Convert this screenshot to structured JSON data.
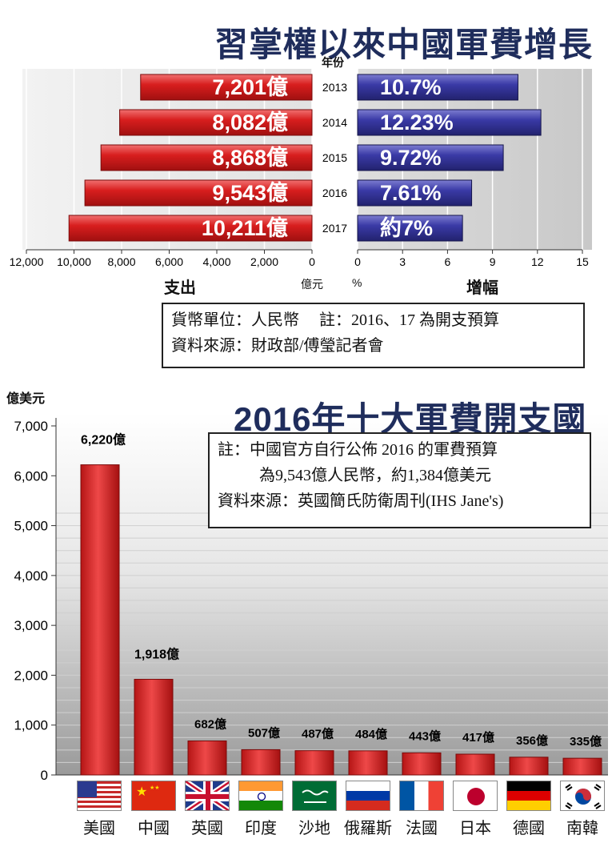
{
  "chart_data": [
    {
      "type": "bar",
      "orientation": "horizontal-butterfly",
      "title": "習掌權以來中國軍費增長",
      "year_header": "年份",
      "categories": [
        "2013",
        "2014",
        "2015",
        "2016",
        "2017"
      ],
      "series": [
        {
          "name": "支出",
          "values": [
            7201,
            8082,
            8868,
            9543,
            10211
          ],
          "labels": [
            "7,201億",
            "8,082億",
            "8,868億",
            "9,543億",
            "10,211億"
          ],
          "unit": "億元",
          "xlim": [
            0,
            12000
          ],
          "color": "#d42020"
        },
        {
          "name": "增幅",
          "values": [
            10.7,
            12.23,
            9.72,
            7.61,
            7
          ],
          "labels": [
            "10.7%",
            "12.23%",
            "9.72%",
            "7.61%",
            "約7%"
          ],
          "unit": "%",
          "xlim": [
            0,
            15
          ],
          "color": "#3a3aa0"
        }
      ],
      "left_ticks": [
        "12,000",
        "10,000",
        "8,000",
        "6,000",
        "4,000",
        "2,000",
        "0"
      ],
      "right_ticks": [
        "0",
        "3",
        "6",
        "9",
        "12",
        "15"
      ],
      "note": [
        "貨幣單位：人民幣　 註：2016、17 為開支預算",
        "資料來源：財政部/傅瑩記者會"
      ]
    },
    {
      "type": "bar",
      "title": "2016年十大軍費開支國",
      "ylabel": "億美元",
      "ylim": [
        0,
        7000
      ],
      "yticks": [
        "0",
        "1,000",
        "2,000",
        "3,000",
        "4,000",
        "5,000",
        "6,000",
        "7,000"
      ],
      "categories": [
        "美國",
        "中國",
        "英國",
        "印度",
        "沙地",
        "俄羅斯",
        "法國",
        "日本",
        "德國",
        "南韓"
      ],
      "values": [
        6220,
        1918,
        682,
        507,
        487,
        484,
        443,
        417,
        356,
        335
      ],
      "labels": [
        "6,220億",
        "1,918億",
        "682億",
        "507億",
        "487億",
        "484億",
        "443億",
        "417億",
        "356億",
        "335億"
      ],
      "color": "#d42020",
      "note": [
        "註：中國官方自行公佈 2016 的軍費預算",
        "為9,543億人民幣，約1,384億美元",
        "資料來源：英國簡氏防衛周刊(IHS Jane's)"
      ]
    }
  ]
}
